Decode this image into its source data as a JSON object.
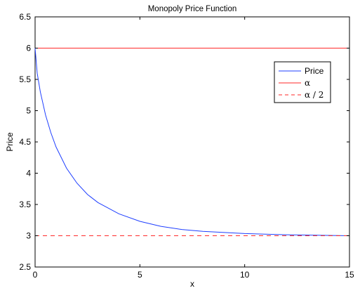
{
  "chart_data": {
    "type": "line",
    "title": "Monopoly Price Function",
    "xlabel": "x",
    "ylabel": "Price",
    "xlim": [
      0,
      15
    ],
    "ylim": [
      2.5,
      6.5
    ],
    "xticks": [
      "0",
      "5",
      "10",
      "15"
    ],
    "yticks": [
      "2.5",
      "3",
      "3.5",
      "4",
      "4.5",
      "5",
      "5.5",
      "6",
      "6.5"
    ],
    "grid": false,
    "legend_position": "top-right",
    "series": [
      {
        "name": "Price",
        "color": "#1f3fff",
        "style": "solid",
        "x": [
          0,
          0.1,
          0.25,
          0.5,
          0.75,
          1,
          1.5,
          2,
          2.5,
          3,
          4,
          5,
          6,
          7,
          8,
          10,
          12,
          15
        ],
        "y": [
          6.0,
          5.6,
          5.3,
          4.93,
          4.65,
          4.42,
          4.08,
          3.84,
          3.66,
          3.53,
          3.35,
          3.23,
          3.15,
          3.1,
          3.07,
          3.035,
          3.015,
          3.0
        ]
      },
      {
        "name": "α",
        "color": "#ff2a2a",
        "style": "solid",
        "x": [
          0,
          15
        ],
        "y": [
          6,
          6
        ]
      },
      {
        "name": "α / 2",
        "color": "#ff2a2a",
        "style": "dashed",
        "x": [
          0,
          15
        ],
        "y": [
          3,
          3
        ]
      }
    ]
  }
}
